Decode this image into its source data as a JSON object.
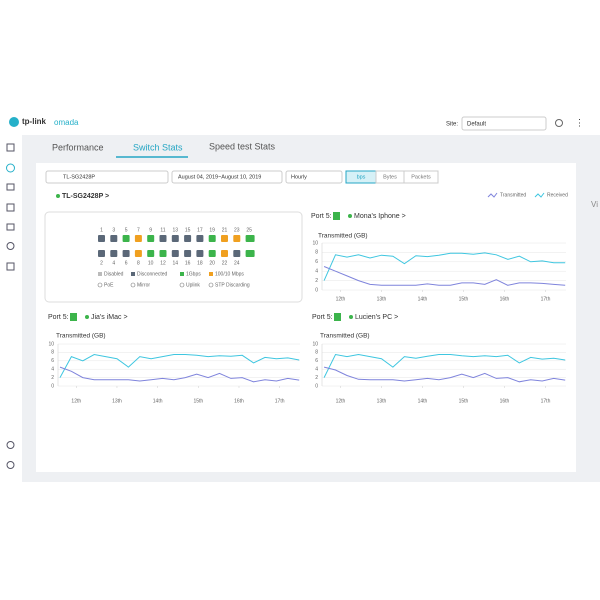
{
  "header": {
    "brand": "tp-link",
    "product": "omada",
    "site_label": "Site:",
    "site": "Default"
  },
  "tabs": [
    "Performance",
    "Switch Stats",
    "Speed test Stats"
  ],
  "filters": {
    "device": "TL-SG2428P",
    "date_range": "August 04, 2019~August 10, 2019",
    "interval": "Hourly",
    "units": [
      "bps",
      "Bytes",
      "Packets"
    ]
  },
  "device_link": "TL-SG2428P >",
  "edge_text": "Vi",
  "port_panel": {
    "top_ports": [
      "1",
      "3",
      "5",
      "7",
      "9",
      "11",
      "13",
      "15",
      "17",
      "19",
      "21",
      "23",
      "25"
    ],
    "bottom_ports": [
      "2",
      "4",
      "6",
      "8",
      "10",
      "12",
      "14",
      "16",
      "18",
      "20",
      "22",
      "24"
    ],
    "legend": [
      "Disabled",
      "Disconnected",
      "1Gbps",
      "100/10 Mbps",
      "PoE",
      "Mirror",
      "Uplink",
      "STP Discarding"
    ]
  },
  "charts": [
    {
      "type": "line",
      "port": "Port 5:",
      "client": "Mona's Iphone >",
      "title": "Transmitted (GB)",
      "x": [
        11.6,
        11.88,
        12.16,
        12.44,
        12.72,
        13.0,
        13.28,
        13.56,
        13.84,
        14.12,
        14.4,
        14.68,
        14.96,
        15.24,
        15.52,
        15.8,
        16.08,
        16.36,
        16.64,
        16.92,
        17.2,
        17.48
      ],
      "xlim": [
        11.55,
        17.5
      ],
      "xticks": [
        {
          "value": 12,
          "label": "12th"
        },
        {
          "value": 13,
          "label": "13th"
        },
        {
          "value": 14,
          "label": "14th"
        },
        {
          "value": 15,
          "label": "15th"
        },
        {
          "value": 16,
          "label": "16th"
        },
        {
          "value": 17,
          "label": "17th"
        }
      ],
      "ylim": [
        0,
        10
      ],
      "yticks": [
        0,
        2,
        4,
        6,
        8,
        10
      ],
      "series": [
        {
          "name": "Transmitted",
          "color": "#3ec6e0",
          "values": [
            2,
            7.5,
            7,
            7.5,
            6.8,
            7.4,
            7.2,
            5.6,
            7.3,
            7.1,
            7.4,
            7.8,
            7.8,
            7.6,
            7.9,
            7.5,
            6.5,
            7.2,
            6,
            6.2,
            5.8,
            5.8
          ]
        },
        {
          "name": "Received",
          "color": "#7f84dc",
          "values": [
            5,
            4,
            3,
            2,
            1.2,
            1,
            1,
            1,
            1,
            1.3,
            1,
            1,
            1.5,
            1.5,
            1.2,
            2.2,
            1,
            1.5,
            1.5,
            1.4,
            1.2,
            1
          ]
        }
      ]
    },
    {
      "type": "line",
      "port": "Port 5:",
      "client": "Jia's iMac >",
      "title": "Transmitted (GB)",
      "x": [
        11.6,
        11.88,
        12.16,
        12.44,
        12.72,
        13.0,
        13.28,
        13.56,
        13.84,
        14.12,
        14.4,
        14.68,
        14.96,
        15.24,
        15.52,
        15.8,
        16.08,
        16.36,
        16.64,
        16.92,
        17.2,
        17.48
      ],
      "xlim": [
        11.55,
        17.5
      ],
      "xticks": [
        {
          "value": 12,
          "label": "12th"
        },
        {
          "value": 13,
          "label": "13th"
        },
        {
          "value": 14,
          "label": "14th"
        },
        {
          "value": 15,
          "label": "15th"
        },
        {
          "value": 16,
          "label": "16th"
        },
        {
          "value": 17,
          "label": "17th"
        }
      ],
      "ylim": [
        0,
        10
      ],
      "yticks": [
        0,
        2,
        4,
        6,
        8,
        10
      ],
      "series": [
        {
          "name": "Transmitted",
          "color": "#3ec6e0",
          "values": [
            2,
            7,
            6,
            7.5,
            7,
            6.5,
            4.5,
            7,
            6.5,
            7,
            7.5,
            7.5,
            7.3,
            7,
            7.2,
            7.1,
            7.3,
            5.5,
            6.8,
            6.5,
            6.7,
            6.2
          ]
        },
        {
          "name": "Received",
          "color": "#7f84dc",
          "values": [
            4.5,
            3.5,
            2,
            1.5,
            1.5,
            1.5,
            1.5,
            1.2,
            1.5,
            1.8,
            1.5,
            2,
            2.8,
            2,
            3,
            1.8,
            2,
            1,
            1.5,
            1.2,
            1.8,
            1.4
          ]
        }
      ]
    },
    {
      "type": "line",
      "port": "Port 5:",
      "client": "Lucien's PC >",
      "title": "Transmitted (GB)",
      "x": [
        11.6,
        11.88,
        12.16,
        12.44,
        12.72,
        13.0,
        13.28,
        13.56,
        13.84,
        14.12,
        14.4,
        14.68,
        14.96,
        15.24,
        15.52,
        15.8,
        16.08,
        16.36,
        16.64,
        16.92,
        17.2,
        17.48
      ],
      "xlim": [
        11.55,
        17.5
      ],
      "xticks": [
        {
          "value": 12,
          "label": "12th"
        },
        {
          "value": 13,
          "label": "13th"
        },
        {
          "value": 14,
          "label": "14th"
        },
        {
          "value": 15,
          "label": "15th"
        },
        {
          "value": 16,
          "label": "16th"
        },
        {
          "value": 17,
          "label": "17th"
        }
      ],
      "ylim": [
        0,
        10
      ],
      "yticks": [
        0,
        2,
        4,
        6,
        8,
        10
      ],
      "series": [
        {
          "name": "Transmitted",
          "color": "#3ec6e0",
          "values": [
            2,
            7.5,
            7,
            7.5,
            7,
            6.5,
            4.5,
            7,
            6.6,
            7.1,
            7.5,
            7.5,
            7.2,
            7,
            7.2,
            7,
            7.3,
            5.5,
            6.8,
            6.4,
            6.6,
            6.2
          ]
        },
        {
          "name": "Received",
          "color": "#7f84dc",
          "values": [
            4.5,
            3.8,
            2.5,
            1.6,
            1.5,
            1.5,
            1.5,
            1.2,
            1.5,
            1.8,
            1.5,
            2,
            2.8,
            2,
            3,
            1.8,
            2,
            1,
            1.5,
            1.2,
            1.8,
            1.4
          ]
        }
      ]
    }
  ]
}
